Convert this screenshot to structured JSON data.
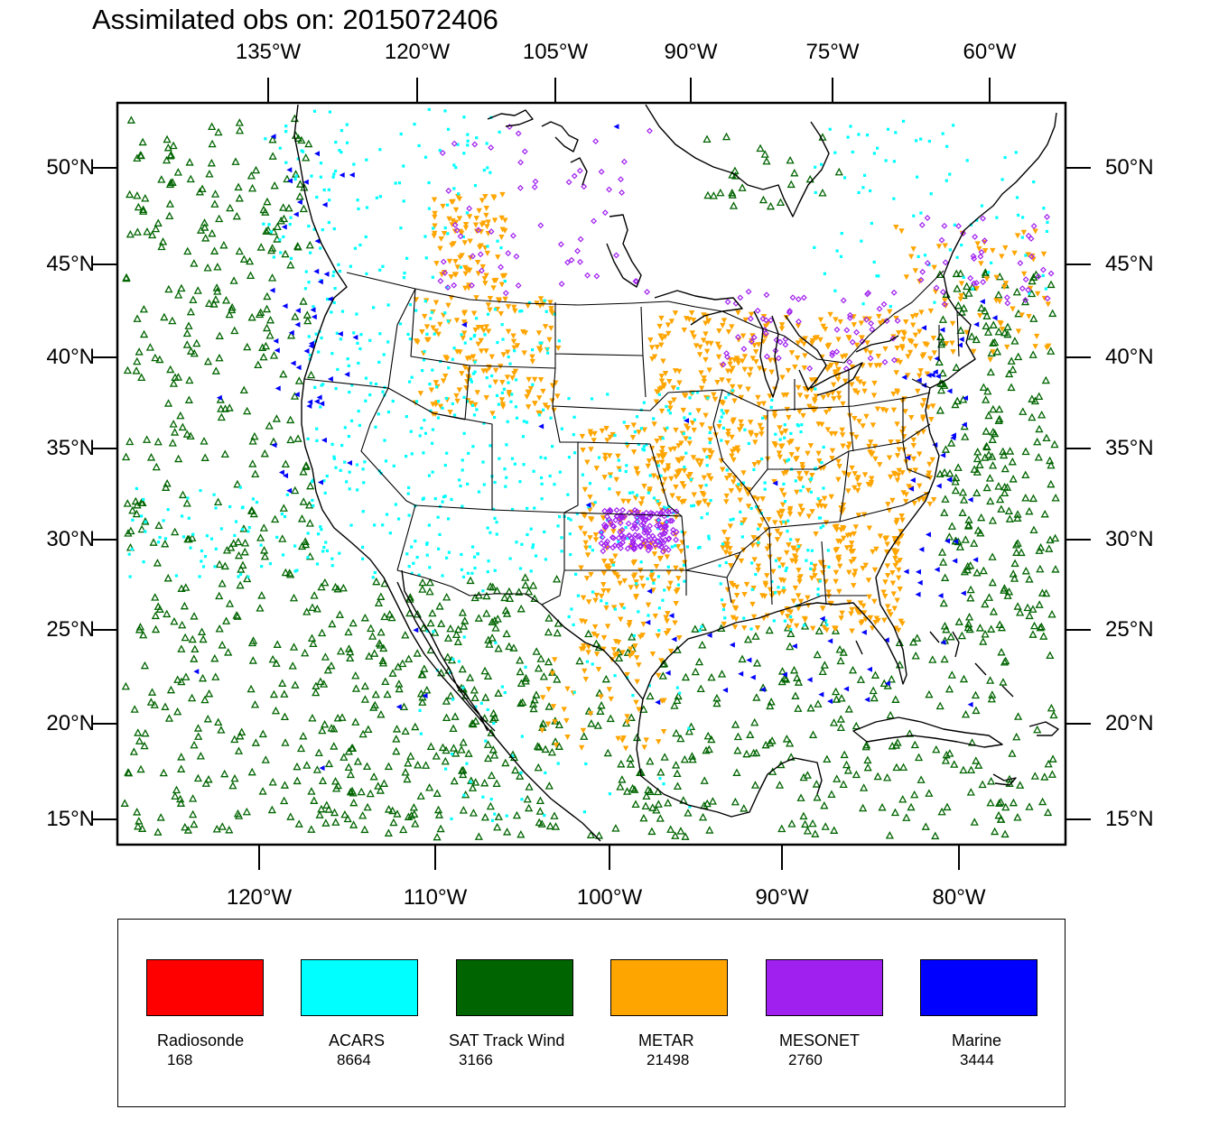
{
  "title": "Assimilated obs on: 2015072406",
  "axes": {
    "top_lon_ticks": [
      "135°W",
      "120°W",
      "105°W",
      "90°W",
      "75°W",
      "60°W"
    ],
    "bottom_lon_ticks": [
      "120°W",
      "110°W",
      "100°W",
      "90°W",
      "80°W"
    ],
    "lat_ticks": [
      "50°N",
      "45°N",
      "40°N",
      "35°N",
      "30°N",
      "25°N",
      "20°N",
      "15°N"
    ]
  },
  "legend": {
    "items": [
      {
        "name": "Radiosonde",
        "count": "168",
        "color": "#ff0000"
      },
      {
        "name": "ACARS",
        "count": "8664",
        "color": "#00ffff"
      },
      {
        "name": "SAT Track Wind",
        "count": "3166",
        "color": "#006400"
      },
      {
        "name": "METAR",
        "count": "21498",
        "color": "#ffa500"
      },
      {
        "name": "MESONET",
        "count": "2760",
        "color": "#a020f0"
      },
      {
        "name": "Marine",
        "count": "3444",
        "color": "#0000ff"
      }
    ]
  },
  "colors": {
    "frame": "#000000",
    "coastline": "#000000",
    "background": "#ffffff"
  }
}
